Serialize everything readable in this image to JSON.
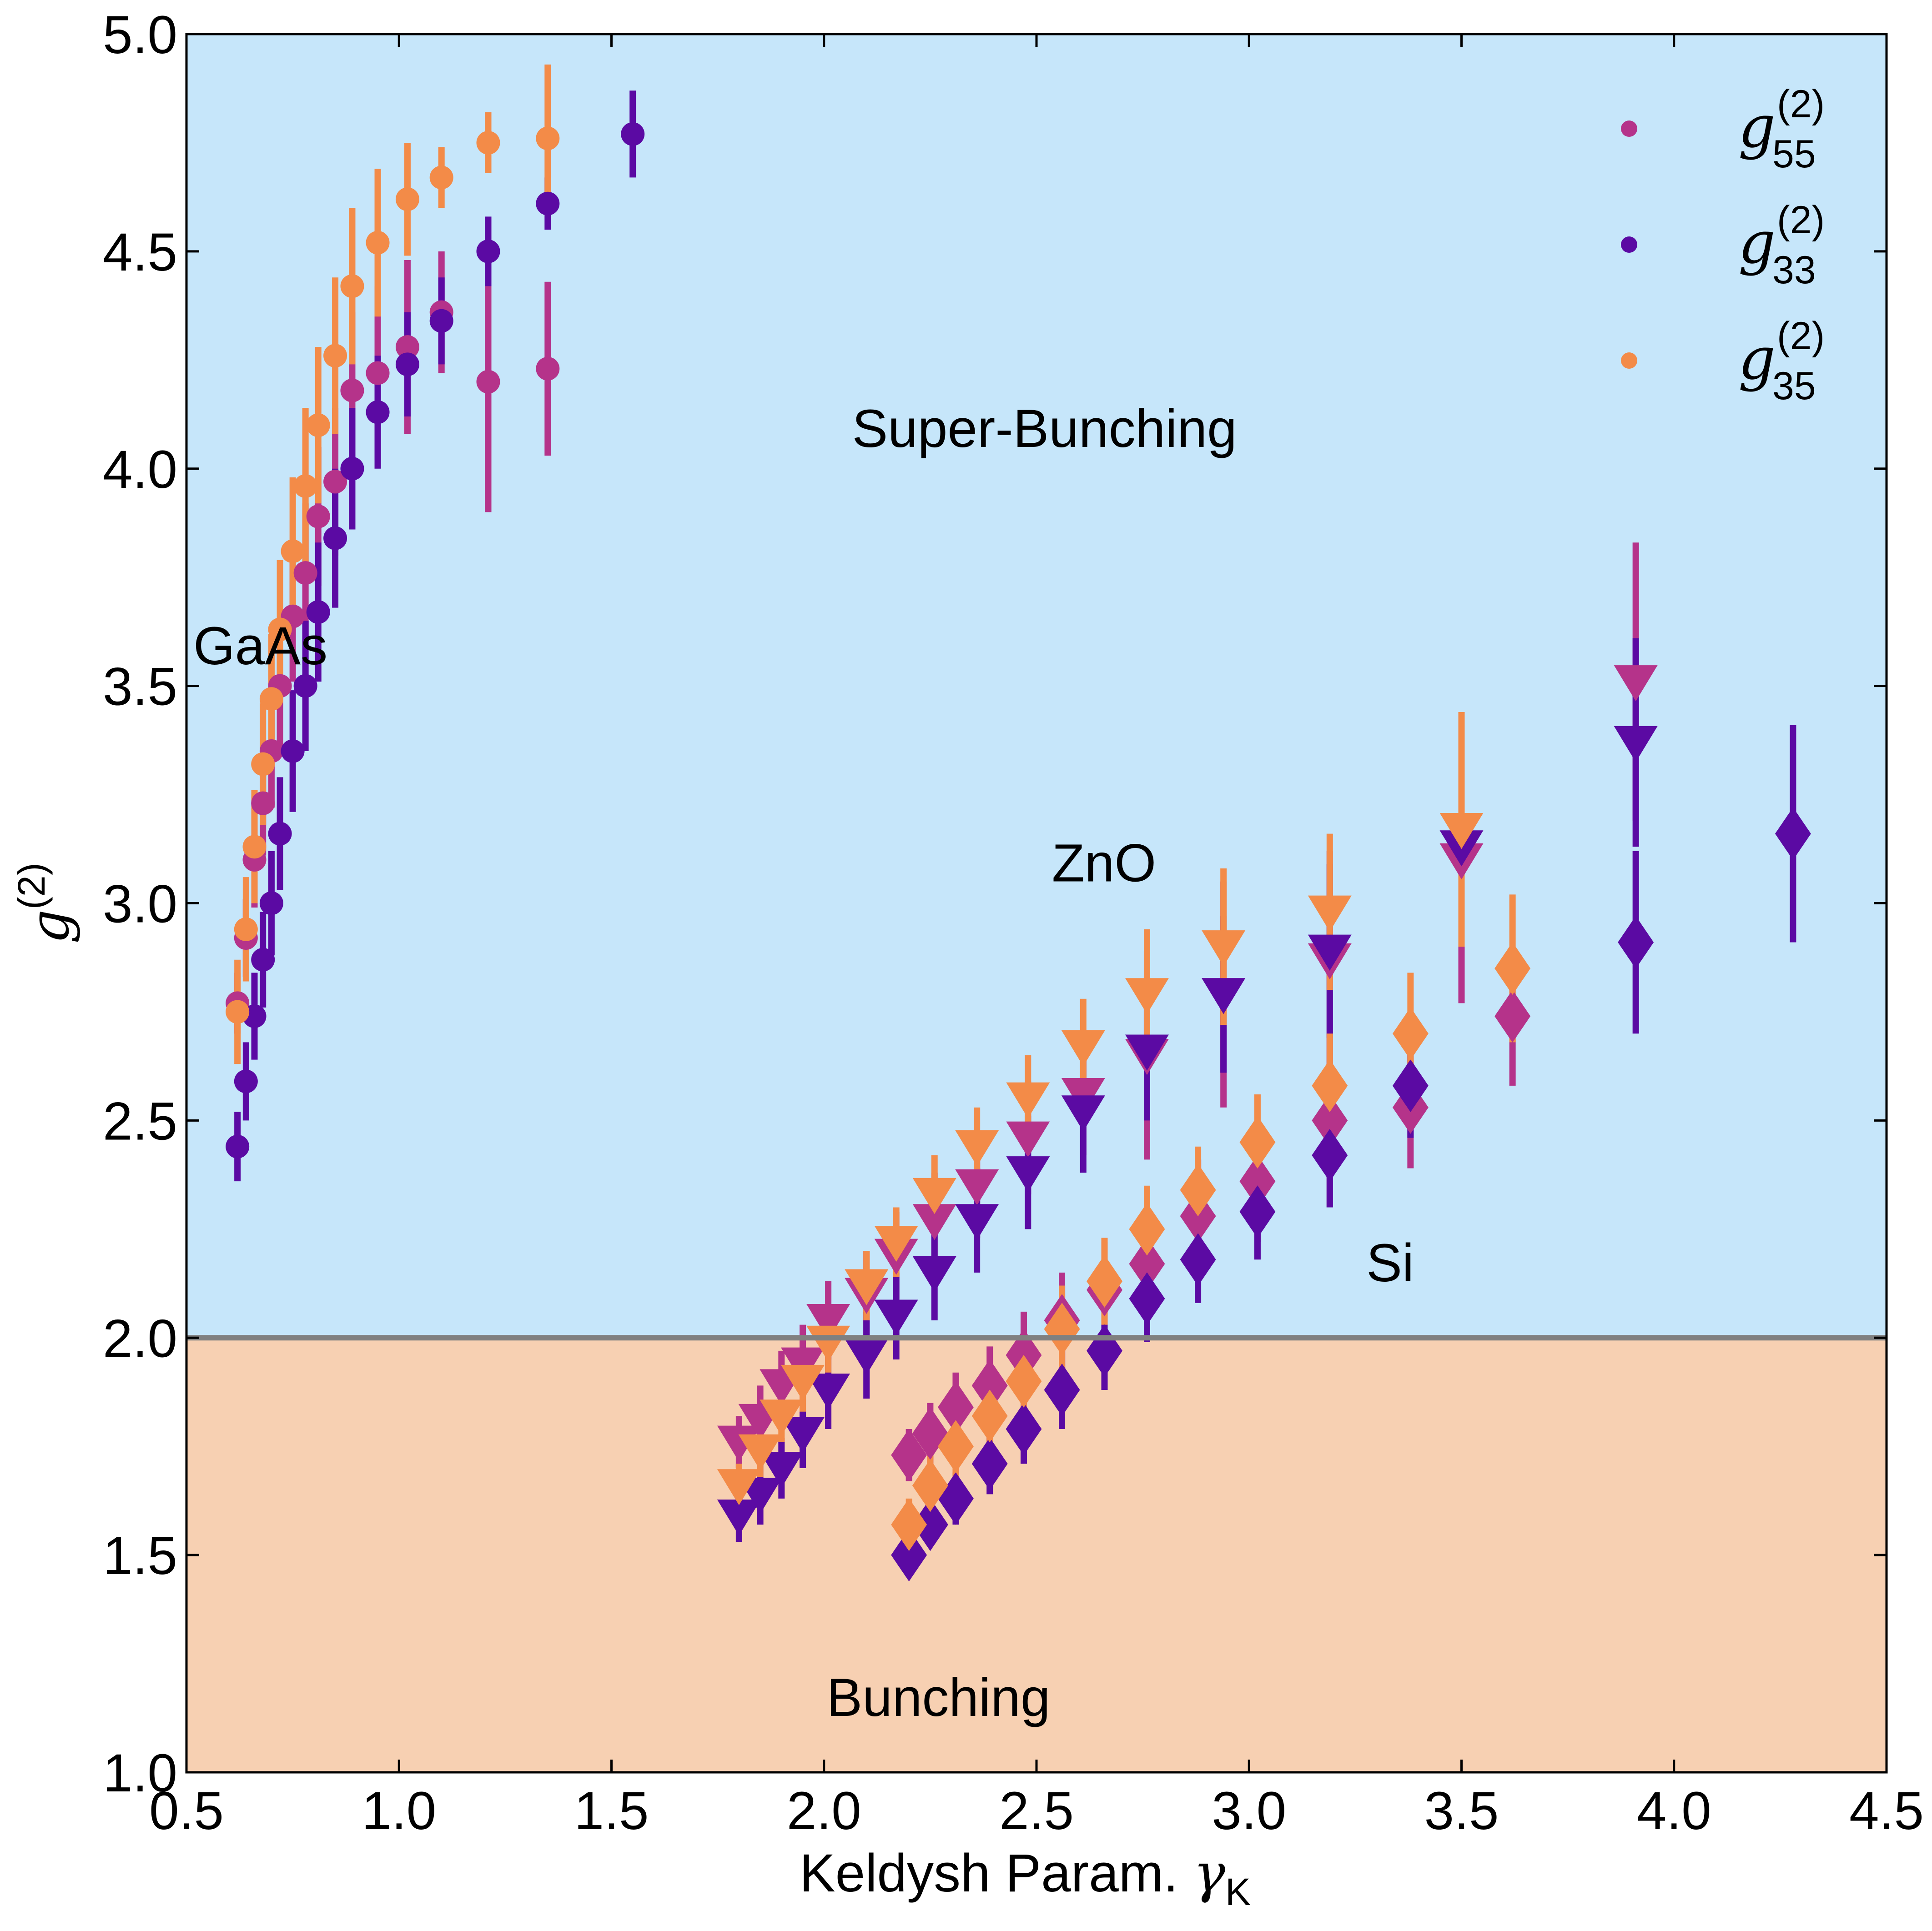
{
  "chart_data": {
    "type": "scatter",
    "xlabel": "Keldysh Param. γK",
    "xlabel_main": "Keldysh Param. ",
    "xlabel_symbol": "γ",
    "xlabel_subscript": "K",
    "ylabel": "g(2)",
    "ylabel_main": "g",
    "ylabel_sup": "(2)",
    "xlim": [
      0.5,
      4.5
    ],
    "ylim": [
      1.0,
      5.0
    ],
    "x_ticks": [
      "0.5",
      "1.0",
      "1.5",
      "2.0",
      "2.5",
      "3.0",
      "3.5",
      "4.0",
      "4.5"
    ],
    "y_ticks": [
      "1.0",
      "1.5",
      "2.0",
      "2.5",
      "3.0",
      "3.5",
      "4.0",
      "4.5",
      "5.0"
    ],
    "threshold": 2.0,
    "regions": [
      {
        "name": "Super-Bunching",
        "from": 2.0,
        "to": 5.0,
        "color": "#c6e6fa"
      },
      {
        "name": "Bunching",
        "from": 1.0,
        "to": 2.0,
        "color": "#f7d0b2"
      }
    ],
    "annotations": [
      {
        "text": "Super-Bunching",
        "x": 2.05,
        "y": 4.05
      },
      {
        "text": "GaAs",
        "x": 0.5,
        "y": 3.55
      },
      {
        "text": "ZnO",
        "x": 2.52,
        "y": 3.05
      },
      {
        "text": "Si",
        "x": 3.26,
        "y": 2.13
      },
      {
        "text": "Bunching",
        "x": 1.99,
        "y": 1.13
      }
    ],
    "legend": {
      "position": "top-right",
      "entries": [
        {
          "base": "g",
          "sup": "(2)",
          "sub": "55",
          "color": "#b5338a"
        },
        {
          "base": "g",
          "sup": "(2)",
          "sub": "33",
          "color": "#5b0aa3"
        },
        {
          "base": "g",
          "sup": "(2)",
          "sub": "35",
          "color": "#f38b48"
        }
      ]
    },
    "colors": {
      "g55": "#b5338a",
      "g33": "#5b0aa3",
      "g35": "#f38b48",
      "threshold_line": "#808080"
    },
    "series": [
      {
        "material": "GaAs",
        "name": "g55",
        "marker": "circle",
        "color": "#b5338a",
        "x": [
          0.62,
          0.64,
          0.66,
          0.68,
          0.7,
          0.72,
          0.75,
          0.78,
          0.81,
          0.85,
          0.89,
          0.95,
          1.02,
          1.1,
          1.21,
          1.35
        ],
        "y": [
          2.77,
          2.92,
          3.1,
          3.23,
          3.35,
          3.5,
          3.66,
          3.76,
          3.89,
          3.97,
          4.18,
          4.22,
          4.28,
          4.36,
          4.2,
          4.23
        ],
        "err": [
          0.07,
          0.09,
          0.11,
          0.12,
          0.13,
          0.14,
          0.15,
          0.16,
          0.16,
          0.17,
          0.18,
          0.2,
          0.2,
          0.14,
          0.3,
          0.2
        ]
      },
      {
        "material": "GaAs",
        "name": "g33",
        "marker": "circle",
        "color": "#5b0aa3",
        "x": [
          0.62,
          0.64,
          0.66,
          0.68,
          0.7,
          0.72,
          0.75,
          0.78,
          0.81,
          0.85,
          0.89,
          0.95,
          1.02,
          1.1,
          1.21,
          1.35,
          1.55
        ],
        "y": [
          2.44,
          2.59,
          2.74,
          2.87,
          3.0,
          3.16,
          3.35,
          3.5,
          3.67,
          3.84,
          4.0,
          4.13,
          4.24,
          4.34,
          4.5,
          4.61,
          4.77
        ],
        "err": [
          0.08,
          0.09,
          0.1,
          0.11,
          0.12,
          0.13,
          0.14,
          0.15,
          0.16,
          0.16,
          0.14,
          0.13,
          0.12,
          0.1,
          0.08,
          0.06,
          0.1
        ]
      },
      {
        "material": "GaAs",
        "name": "g35",
        "marker": "circle",
        "color": "#f38b48",
        "x": [
          0.62,
          0.64,
          0.66,
          0.68,
          0.7,
          0.72,
          0.75,
          0.78,
          0.81,
          0.85,
          0.89,
          0.95,
          1.02,
          1.1,
          1.21,
          1.35
        ],
        "y": [
          2.75,
          2.94,
          3.13,
          3.32,
          3.47,
          3.63,
          3.81,
          3.96,
          4.1,
          4.26,
          4.42,
          4.52,
          4.62,
          4.67,
          4.75,
          4.76
        ],
        "err": [
          0.12,
          0.12,
          0.13,
          0.14,
          0.15,
          0.16,
          0.17,
          0.18,
          0.18,
          0.18,
          0.18,
          0.17,
          0.13,
          0.07,
          0.07,
          0.17
        ]
      },
      {
        "material": "ZnO",
        "name": "g55",
        "marker": "triangle-down",
        "color": "#b5338a",
        "x": [
          1.8,
          1.85,
          1.9,
          1.95,
          2.01,
          2.1,
          2.17,
          2.26,
          2.36,
          2.48,
          2.61,
          2.76,
          2.94,
          3.19,
          3.5,
          3.91
        ],
        "y": [
          1.76,
          1.81,
          1.89,
          1.94,
          2.04,
          2.1,
          2.19,
          2.27,
          2.35,
          2.46,
          2.56,
          2.65,
          2.79,
          2.87,
          3.1,
          3.51
        ],
        "err": [
          0.06,
          0.08,
          0.08,
          0.09,
          0.09,
          0.1,
          0.1,
          0.11,
          0.12,
          0.13,
          0.14,
          0.24,
          0.26,
          0.25,
          0.33,
          0.32
        ]
      },
      {
        "material": "ZnO",
        "name": "g33",
        "marker": "triangle-down",
        "color": "#5b0aa3",
        "x": [
          1.8,
          1.85,
          1.9,
          1.95,
          2.01,
          2.1,
          2.17,
          2.26,
          2.36,
          2.48,
          2.61,
          2.76,
          2.94,
          3.19,
          3.5,
          3.91
        ],
        "y": [
          1.59,
          1.64,
          1.7,
          1.78,
          1.88,
          1.96,
          2.05,
          2.15,
          2.27,
          2.38,
          2.52,
          2.66,
          2.79,
          2.89,
          3.13,
          3.37
        ],
        "err": [
          0.06,
          0.07,
          0.07,
          0.08,
          0.09,
          0.1,
          0.1,
          0.11,
          0.12,
          0.13,
          0.14,
          0.16,
          0.18,
          0.2,
          0.22,
          0.24
        ]
      },
      {
        "material": "ZnO",
        "name": "g35",
        "marker": "triangle-down",
        "color": "#f38b48",
        "x": [
          1.8,
          1.85,
          1.9,
          1.95,
          2.01,
          2.1,
          2.17,
          2.26,
          2.36,
          2.48,
          2.61,
          2.76,
          2.94,
          3.19,
          3.5
        ],
        "y": [
          1.66,
          1.74,
          1.82,
          1.9,
          1.99,
          2.12,
          2.22,
          2.33,
          2.44,
          2.55,
          2.67,
          2.79,
          2.9,
          2.98,
          3.17
        ],
        "err": [
          0.05,
          0.06,
          0.06,
          0.07,
          0.07,
          0.08,
          0.08,
          0.09,
          0.09,
          0.1,
          0.11,
          0.15,
          0.18,
          0.18,
          0.27
        ]
      },
      {
        "material": "Si",
        "name": "g55",
        "marker": "diamond",
        "color": "#b5338a",
        "x": [
          2.2,
          2.25,
          2.31,
          2.39,
          2.47,
          2.56,
          2.66,
          2.76,
          2.88,
          3.02,
          3.19,
          3.38,
          3.62
        ],
        "y": [
          1.73,
          1.78,
          1.84,
          1.89,
          1.96,
          2.04,
          2.11,
          2.17,
          2.28,
          2.36,
          2.5,
          2.53,
          2.74
        ],
        "err": [
          0.06,
          0.07,
          0.08,
          0.09,
          0.1,
          0.11,
          0.11,
          0.12,
          0.13,
          0.14,
          0.2,
          0.14,
          0.16
        ]
      },
      {
        "material": "Si",
        "name": "g33",
        "marker": "diamond",
        "color": "#5b0aa3",
        "x": [
          2.2,
          2.25,
          2.31,
          2.39,
          2.47,
          2.56,
          2.66,
          2.76,
          2.88,
          3.02,
          3.19,
          3.38,
          3.91,
          4.28
        ],
        "y": [
          1.5,
          1.57,
          1.63,
          1.71,
          1.79,
          1.88,
          1.97,
          2.09,
          2.18,
          2.29,
          2.42,
          2.58,
          2.91,
          3.16
        ],
        "err": [
          0.04,
          0.05,
          0.06,
          0.07,
          0.08,
          0.09,
          0.09,
          0.1,
          0.1,
          0.11,
          0.12,
          0.12,
          0.21,
          0.25
        ]
      },
      {
        "material": "Si",
        "name": "g35",
        "marker": "diamond",
        "color": "#f38b48",
        "x": [
          2.2,
          2.25,
          2.31,
          2.39,
          2.47,
          2.56,
          2.66,
          2.76,
          2.88,
          3.02,
          3.19,
          3.38,
          3.62
        ],
        "y": [
          1.57,
          1.66,
          1.75,
          1.82,
          1.9,
          2.02,
          2.13,
          2.25,
          2.34,
          2.45,
          2.58,
          2.7,
          2.85
        ],
        "err": [
          0.06,
          0.07,
          0.07,
          0.08,
          0.09,
          0.1,
          0.1,
          0.1,
          0.1,
          0.11,
          0.12,
          0.14,
          0.17
        ]
      }
    ]
  }
}
